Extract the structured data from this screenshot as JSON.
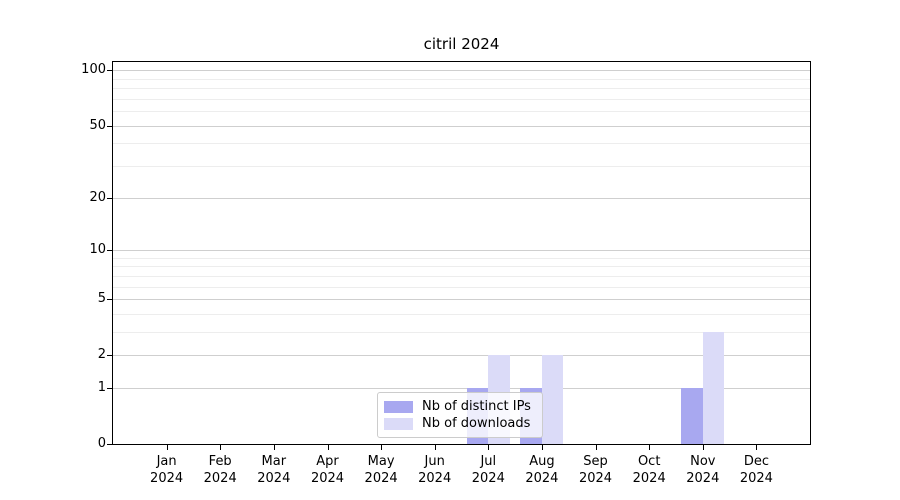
{
  "title": "citril 2024",
  "chart_data": {
    "type": "bar",
    "title": "citril 2024",
    "categories": [
      "Jan",
      "Feb",
      "Mar",
      "Apr",
      "May",
      "Jun",
      "Jul",
      "Aug",
      "Sep",
      "Oct",
      "Nov",
      "Dec"
    ],
    "year": "2024",
    "series": [
      {
        "name": "Nb of distinct IPs",
        "color": "#a8a8f0",
        "values": [
          0,
          0,
          0,
          0,
          0,
          0,
          1,
          1,
          0,
          0,
          1,
          0
        ]
      },
      {
        "name": "Nb of downloads",
        "color": "#dbdbf8",
        "values": [
          0,
          0,
          0,
          0,
          0,
          0,
          2,
          2,
          0,
          0,
          3,
          0
        ]
      }
    ],
    "xlabel": "",
    "ylabel": "",
    "yscale": "log1p",
    "y_axis_max": 111,
    "y_major_ticks": [
      0,
      1,
      2,
      5,
      10,
      20,
      50,
      100
    ],
    "y_minor_ticks": [
      3,
      4,
      6,
      7,
      8,
      9,
      30,
      40,
      60,
      70,
      80,
      90
    ],
    "grid": true,
    "legend_position": "lower center",
    "colors": {
      "grid_major": "#cfcfcf",
      "grid_minor": "#ededed",
      "axis": "#000000",
      "legend_border": "#cccccc"
    }
  }
}
